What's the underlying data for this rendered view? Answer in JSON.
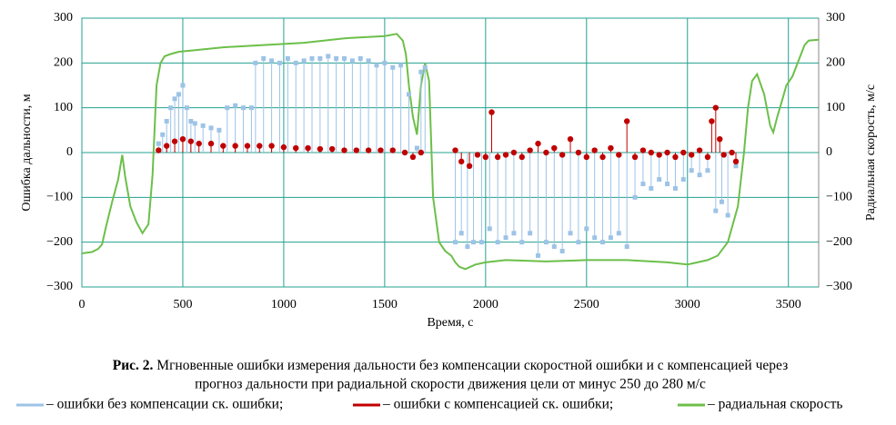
{
  "chart_data": {
    "type": "line",
    "xlabel": "Время, с",
    "ylabel": "Ошибка дальности, м",
    "y2label": "Радиальная скорость, м/с",
    "caption_label": "Рис. 2.",
    "caption_lines": [
      "Мгновенные ошибки измерения дальности без компенсации скоростной ошибки и с компенсацией через",
      "прогноз дальности при радиальной скорости движения цели от минус 250 до 280 м/с"
    ],
    "xlim": [
      0,
      3650
    ],
    "xticks": [
      0,
      500,
      1000,
      1500,
      2000,
      2500,
      3000,
      3500
    ],
    "ylim": [
      -300,
      300
    ],
    "yticks": [
      {
        "value": -300,
        "label": "−300"
      },
      {
        "value": -200,
        "label": "−200"
      },
      {
        "value": -100,
        "label": "−100"
      },
      0,
      100,
      200,
      300
    ],
    "y2lim": [
      -300,
      300
    ],
    "y2ticks": [
      {
        "value": -300,
        "label": "−300"
      },
      {
        "value": -200,
        "label": "−200"
      },
      {
        "value": -100,
        "label": "−100"
      },
      0,
      100,
      200,
      300
    ],
    "grid": true,
    "grid_color": "#23a090",
    "series": [
      {
        "name": "– ошибки без компенсации ск. ошибки;",
        "color": "#9dc3e6",
        "style": "stem",
        "marker": "square",
        "x": [
          380,
          400,
          420,
          440,
          460,
          480,
          500,
          520,
          540,
          560,
          600,
          640,
          680,
          720,
          760,
          800,
          840,
          860,
          900,
          940,
          980,
          1020,
          1060,
          1100,
          1140,
          1180,
          1220,
          1260,
          1300,
          1340,
          1380,
          1420,
          1460,
          1500,
          1540,
          1580,
          1620,
          1660,
          1680,
          1700,
          1850,
          1880,
          1910,
          1940,
          1980,
          2020,
          2060,
          2100,
          2140,
          2180,
          2220,
          2260,
          2300,
          2340,
          2380,
          2420,
          2460,
          2500,
          2540,
          2580,
          2620,
          2660,
          2700,
          2740,
          2780,
          2820,
          2860,
          2900,
          2940,
          2980,
          3020,
          3060,
          3100,
          3140,
          3170,
          3200,
          3240
        ],
        "values": [
          20,
          40,
          70,
          100,
          120,
          130,
          150,
          100,
          70,
          65,
          60,
          55,
          50,
          100,
          105,
          100,
          100,
          200,
          210,
          205,
          200,
          210,
          200,
          205,
          210,
          210,
          215,
          210,
          210,
          205,
          210,
          205,
          195,
          200,
          190,
          195,
          130,
          10,
          180,
          190,
          -200,
          -180,
          -210,
          -200,
          -200,
          -170,
          -200,
          -190,
          -180,
          -200,
          -180,
          -230,
          -200,
          -210,
          -220,
          -180,
          -200,
          -170,
          -190,
          -200,
          -190,
          -180,
          -210,
          -100,
          -70,
          -80,
          -60,
          -70,
          -80,
          -60,
          -40,
          -50,
          -40,
          -130,
          -110,
          -140,
          -30
        ]
      },
      {
        "name": "– ошибки с компенсацией ск. ошибки;",
        "color": "#c00000",
        "style": "stem",
        "marker": "circle",
        "x": [
          380,
          420,
          460,
          500,
          540,
          580,
          640,
          700,
          760,
          820,
          880,
          940,
          1000,
          1060,
          1120,
          1180,
          1240,
          1300,
          1360,
          1420,
          1480,
          1540,
          1600,
          1640,
          1680,
          1850,
          1880,
          1920,
          1960,
          2000,
          2030,
          2060,
          2100,
          2140,
          2180,
          2220,
          2260,
          2300,
          2340,
          2380,
          2420,
          2460,
          2500,
          2540,
          2580,
          2620,
          2660,
          2700,
          2740,
          2780,
          2820,
          2860,
          2900,
          2940,
          2980,
          3020,
          3060,
          3100,
          3120,
          3140,
          3160,
          3180,
          3220,
          3240
        ],
        "values": [
          5,
          15,
          25,
          30,
          25,
          20,
          20,
          15,
          15,
          15,
          15,
          15,
          12,
          10,
          10,
          8,
          8,
          5,
          5,
          5,
          5,
          5,
          0,
          -10,
          0,
          5,
          -20,
          -30,
          -5,
          -10,
          90,
          -10,
          -5,
          0,
          -10,
          5,
          20,
          0,
          10,
          -5,
          30,
          0,
          -10,
          5,
          -10,
          10,
          -5,
          70,
          -10,
          5,
          0,
          -5,
          0,
          -10,
          0,
          -5,
          5,
          -10,
          70,
          100,
          30,
          -5,
          0,
          -20
        ]
      },
      {
        "name": "– радиальная скорость",
        "color": "#6cbf4a",
        "style": "line",
        "axis": "y2",
        "x": [
          0,
          50,
          80,
          100,
          120,
          150,
          180,
          200,
          215,
          240,
          270,
          300,
          330,
          350,
          370,
          390,
          410,
          440,
          480,
          550,
          700,
          900,
          1100,
          1300,
          1500,
          1560,
          1590,
          1605,
          1620,
          1640,
          1660,
          1680,
          1700,
          1720,
          1740,
          1770,
          1800,
          1830,
          1850,
          1870,
          1900,
          1950,
          2000,
          2100,
          2300,
          2500,
          2700,
          2900,
          3000,
          3100,
          3150,
          3200,
          3250,
          3280,
          3300,
          3320,
          3345,
          3380,
          3410,
          3425,
          3445,
          3465,
          3490,
          3520,
          3550,
          3580,
          3600,
          3650
        ],
        "values": [
          -225,
          -222,
          -215,
          -205,
          -165,
          -110,
          -60,
          -5,
          -55,
          -120,
          -155,
          -180,
          -160,
          -50,
          150,
          200,
          215,
          220,
          225,
          228,
          235,
          240,
          245,
          255,
          260,
          265,
          250,
          220,
          150,
          80,
          40,
          150,
          200,
          160,
          -100,
          -200,
          -220,
          -230,
          -245,
          -255,
          -260,
          -250,
          -245,
          -240,
          -243,
          -240,
          -240,
          -245,
          -250,
          -240,
          -230,
          -200,
          -120,
          0,
          100,
          160,
          175,
          130,
          60,
          45,
          80,
          110,
          150,
          170,
          205,
          240,
          250,
          252
        ]
      }
    ]
  }
}
